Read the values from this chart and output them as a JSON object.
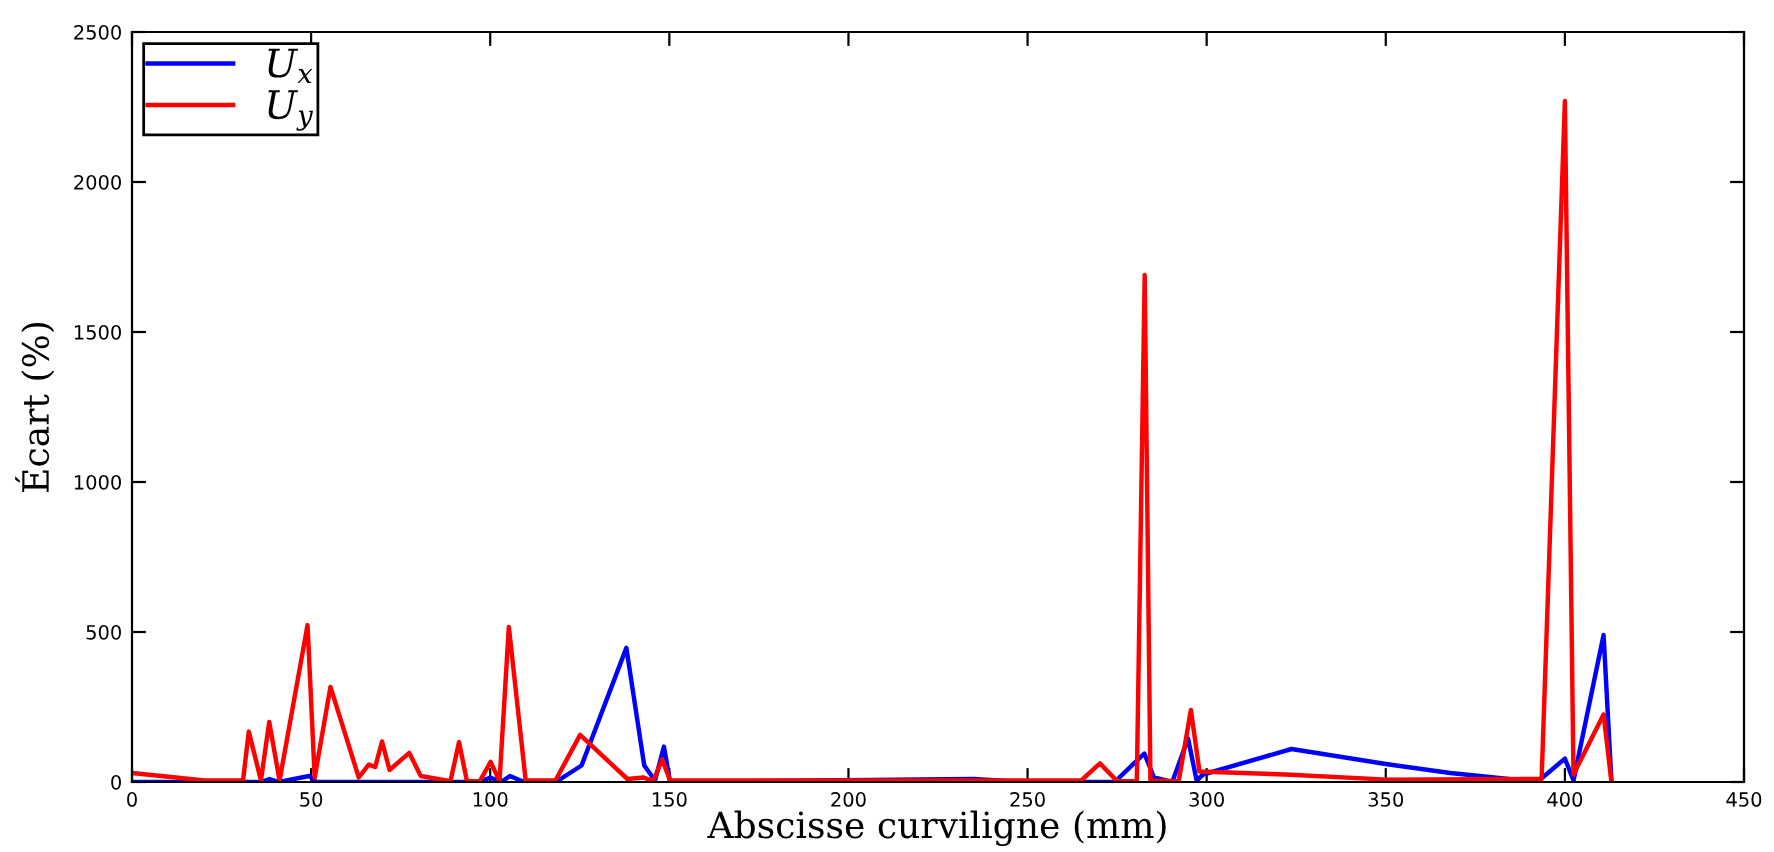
{
  "chart_data": {
    "type": "line",
    "xlabel": "Abscisse curviligne (mm)",
    "ylabel": "Écart (%)",
    "xlim": [
      0,
      450
    ],
    "xticks": [
      0,
      50,
      100,
      150,
      200,
      250,
      300,
      350,
      400,
      450
    ],
    "ylim": [
      0,
      2500
    ],
    "yticks": [
      0,
      500,
      1000,
      1500,
      2000,
      2500
    ],
    "grid": false,
    "legend": "top left",
    "marker": "none",
    "line_style": "solid",
    "series": [
      {
        "name": "U$_{x}$",
        "color": "#0000ff",
        "x": [
          0,
          20,
          36,
          38.4,
          41,
          49.5,
          51.5,
          97,
          100,
          103,
          105.5,
          109.5,
          118.3,
          125.5,
          138,
          143,
          146,
          148.5,
          150.2,
          235,
          248.8,
          274.3,
          282.6,
          285.3,
          290.4,
          294.8,
          297.2,
          299,
          323.7,
          350,
          368,
          392.3,
          400,
          402.4,
          410.8,
          413
        ],
        "values": [
          0,
          0,
          0,
          10,
          0,
          20,
          0,
          0,
          15,
          0,
          20,
          0,
          0,
          55,
          447,
          55,
          5,
          118,
          0,
          10,
          0,
          0,
          95,
          15,
          0,
          145,
          5,
          25,
          110,
          60,
          30,
          0,
          78,
          5,
          490,
          0
        ]
      },
      {
        "name": "U$_{y}$",
        "color": "#ff0000",
        "x": [
          0,
          20.3,
          31,
          32.6,
          36,
          38.3,
          41.2,
          49,
          51,
          55.4,
          63.3,
          66.1,
          67.9,
          69.8,
          71.9,
          77.4,
          80.6,
          88.9,
          91.3,
          93.5,
          97.1,
          100.1,
          102.6,
          105.2,
          109.9,
          118.2,
          125.1,
          138.3,
          142.8,
          145.5,
          148,
          150.2,
          200,
          265,
          270.2,
          275,
          280.5,
          282.7,
          284.3,
          292.2,
          295.6,
          298,
          322,
          350.4,
          393.5,
          400,
          402.4,
          410.8,
          413
        ],
        "values": [
          30,
          5,
          5,
          168,
          5,
          200,
          5,
          523,
          15,
          317,
          15,
          58,
          50,
          135,
          40,
          97,
          20,
          3,
          133,
          3,
          3,
          67,
          3,
          517,
          5,
          5,
          157,
          10,
          15,
          3,
          75,
          5,
          5,
          5,
          62,
          3,
          3,
          1690,
          5,
          3,
          240,
          35,
          25,
          8,
          10,
          2270,
          25,
          225,
          0
        ]
      }
    ]
  }
}
